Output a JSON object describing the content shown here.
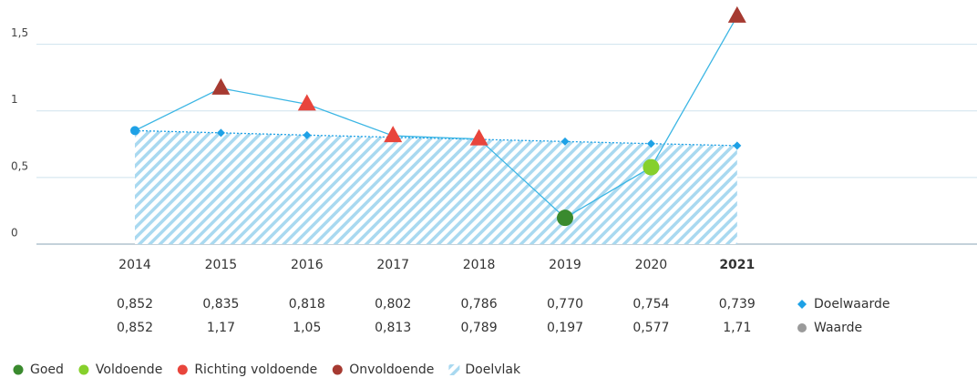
{
  "chart_data": {
    "type": "line",
    "categories": [
      "2014",
      "2015",
      "2016",
      "2017",
      "2018",
      "2019",
      "2020",
      "2021"
    ],
    "ylim": [
      0,
      1.75
    ],
    "yticks": [
      0,
      {
        "value": 0.5,
        "label": "0,5"
      },
      1,
      {
        "value": 1.5,
        "label": "1,5"
      }
    ],
    "grid": true,
    "series": [
      {
        "name": "Doelwaarde",
        "color": "#1ea1e6",
        "line_style": "dotted",
        "marker": "diamond",
        "values": [
          0.852,
          0.835,
          0.818,
          0.802,
          0.786,
          0.77,
          0.754,
          0.739
        ],
        "value_labels": [
          "0,852",
          "0,835",
          "0,818",
          "0,802",
          "0,786",
          "0,770",
          "0,754",
          "0,739"
        ]
      },
      {
        "name": "Waarde",
        "color": "#3cb6e4",
        "legend_color": "#9a9a9a",
        "values": [
          0.852,
          1.17,
          1.05,
          0.813,
          0.789,
          0.197,
          0.577,
          1.71
        ],
        "value_labels": [
          "0,852",
          "1,17",
          "1,05",
          "0,813",
          "0,789",
          "0,197",
          "0,577",
          "1,71"
        ],
        "point_colors": [
          "#1ea1e6",
          "#a63a31",
          "#e8453c",
          "#e8453c",
          "#e8453c",
          "#3a8a2e",
          "#86d02c",
          "#a63a31"
        ],
        "point_shapes": [
          "small-circle",
          "triangle",
          "triangle",
          "triangle",
          "triangle",
          "circle",
          "circle",
          "triangle"
        ]
      }
    ],
    "status_legend": [
      {
        "name": "Goed",
        "color": "#3a8a2e"
      },
      {
        "name": "Voldoende",
        "color": "#86d02c"
      },
      {
        "name": "Richting voldoende",
        "color": "#e8453c"
      },
      {
        "name": "Onvoldoende",
        "color": "#a63a31"
      }
    ],
    "area": {
      "name": "Doelvlak",
      "color": "#a9d9f0"
    }
  }
}
